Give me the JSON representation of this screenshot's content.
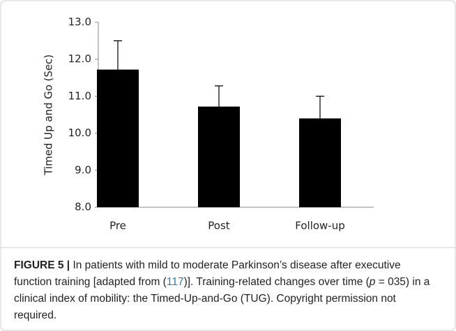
{
  "chart_data": {
    "type": "bar",
    "ylabel": "Timed Up and Go (Sec)",
    "categories": [
      "Pre",
      "Post",
      "Follow-up"
    ],
    "series": [
      {
        "color": "#000000",
        "values": [
          11.72,
          10.72,
          10.4
        ],
        "errors": [
          0.78,
          0.56,
          0.6
        ]
      }
    ],
    "ylim": [
      8.0,
      13.0
    ],
    "yticks": [
      {
        "value": 8,
        "label": "8.0"
      },
      {
        "value": 9,
        "label": "9.0"
      },
      {
        "value": 10,
        "label": "10.0"
      },
      {
        "value": 11,
        "label": "11.0"
      },
      {
        "value": 12,
        "label": "12.0"
      },
      {
        "value": 13,
        "label": "13.0"
      }
    ],
    "grid": false
  },
  "caption": {
    "label": "FIGURE 5 |",
    "text_before": " In patients with mild to moderate Parkinson’s disease after executive function training [adapted from (",
    "ref": "117",
    "text_middle": ")]. Training-related changes over time (",
    "p": "p",
    "text_after": " = 035) in a clinical index of mobility: the Timed-Up-and-Go (TUG). Copyright permission not required."
  }
}
